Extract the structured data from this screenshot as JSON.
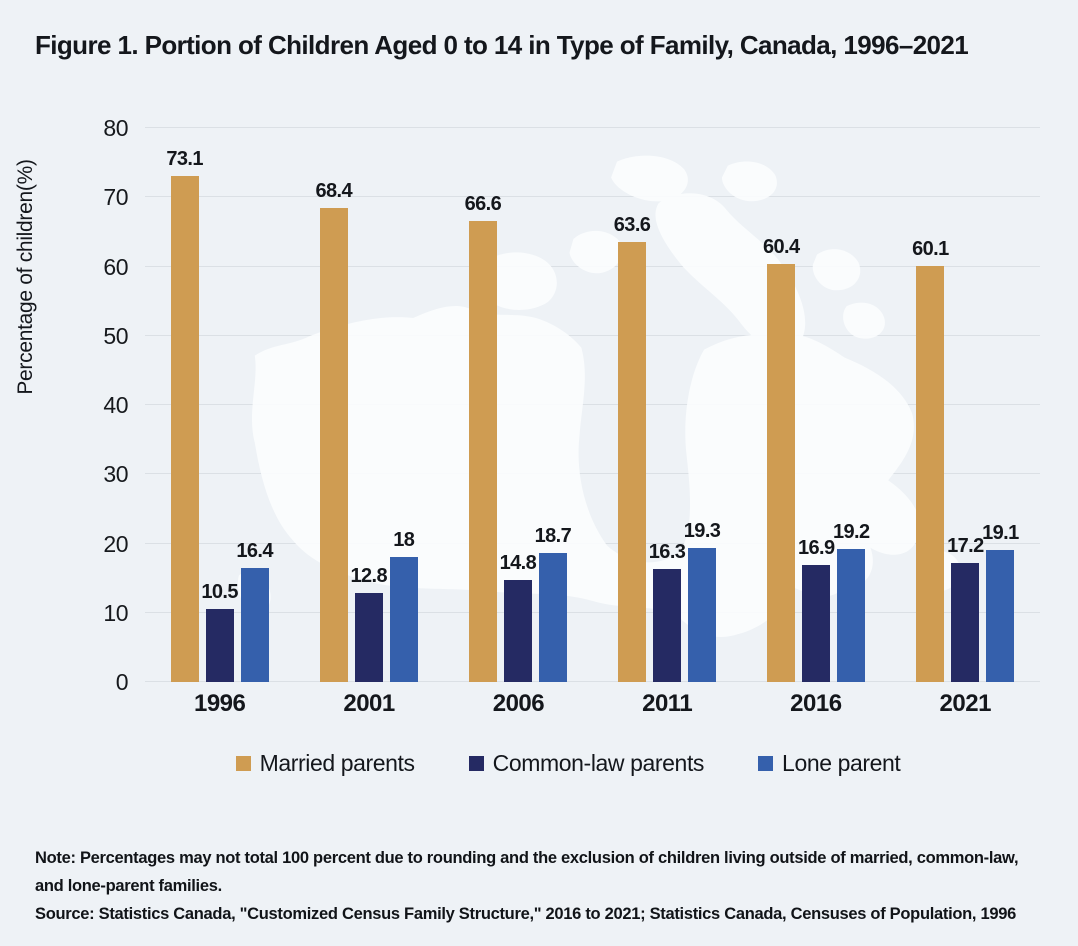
{
  "figure": {
    "title": "Figure 1. Portion of Children Aged 0 to 14 in Type of Family, Canada, 1996–2021",
    "note_lines": [
      "Note: Percentages may not total 100 percent due to rounding and the exclusion of children living outside of married, common-law,",
      "and lone-parent families."
    ],
    "source": "Source: Statistics Canada, \"Customized Census Family Structure,\" 2016 to 2021; Statistics Canada, Censuses of Population, 1996"
  },
  "colors": {
    "background": "#eef2f6",
    "map_watermark": "#fbfdfe",
    "gridline": "#dbe0e5",
    "text": "#14171c",
    "married": "#cf9c52",
    "common_law": "#252a63",
    "lone": "#3560ac"
  },
  "chart_data": {
    "type": "bar",
    "title": "Figure 1. Portion of Children Aged 0 to 14 in Type of Family, Canada, 1996–2021",
    "categories": [
      "1996",
      "2001",
      "2006",
      "2011",
      "2016",
      "2021"
    ],
    "series": [
      {
        "name": "Married parents",
        "color": "#cf9c52",
        "values": [
          73.1,
          68.4,
          66.6,
          63.6,
          60.4,
          60.1
        ]
      },
      {
        "name": "Common-law parents",
        "color": "#252a63",
        "values": [
          10.5,
          12.8,
          14.8,
          16.3,
          16.9,
          17.2
        ]
      },
      {
        "name": "Lone parent",
        "color": "#3560ac",
        "values": [
          16.4,
          18,
          18.7,
          19.3,
          19.2,
          19.1
        ]
      }
    ],
    "xlabel": "",
    "ylabel": "Percentage of children(%)",
    "ylim": [
      0,
      80
    ],
    "yticks": [
      0,
      10,
      20,
      30,
      40,
      50,
      60,
      70,
      80
    ],
    "grid": true,
    "data_labels": true,
    "legend_position": "bottom",
    "background_watermark": "canada-map"
  }
}
